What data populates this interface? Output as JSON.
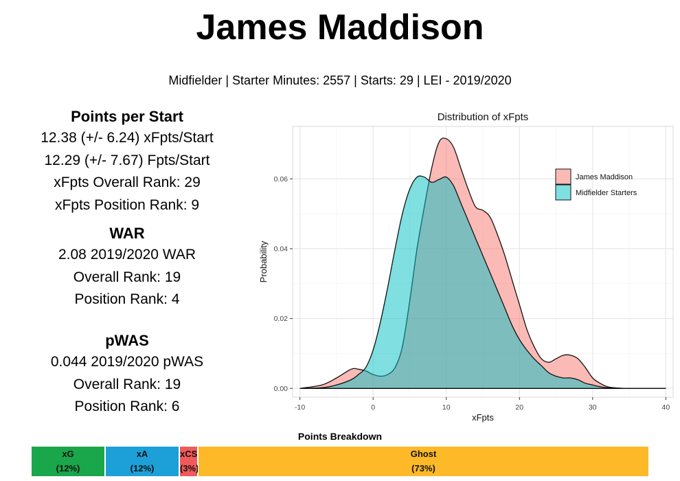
{
  "header": {
    "title": "James Maddison",
    "subtitle": "Midfielder | Starter Minutes: 2557 | Starts: 29 | LEI - 2019/2020"
  },
  "stats": {
    "points": {
      "heading": "Points per Start",
      "lines": [
        "12.38 (+/- 6.24) xFpts/Start",
        "12.29 (+/- 7.67) Fpts/Start",
        "xFpts Overall Rank: 29",
        "xFpts Position Rank: 9"
      ]
    },
    "war": {
      "heading": "WAR",
      "lines": [
        "2.08 2019/2020 WAR",
        "Overall Rank: 19",
        "Position Rank: 4"
      ]
    },
    "pwas": {
      "heading": "pWAS",
      "lines": [
        "0.044 2019/2020 pWAS",
        "Overall Rank: 19",
        "Position Rank: 6"
      ]
    }
  },
  "chart_data": {
    "type": "area",
    "title": "Distribution of xFpts",
    "xlabel": "xFpts",
    "ylabel": "Probability",
    "xlim": [
      -11,
      41
    ],
    "ylim": [
      -0.0025,
      0.075
    ],
    "xticks": [
      -10,
      0,
      10,
      20,
      30,
      40
    ],
    "yticks": [
      0.0,
      0.02,
      0.04,
      0.06
    ],
    "ytick_labels": [
      "0.00",
      "0.02",
      "0.04",
      "0.06"
    ],
    "grid": true,
    "legend_position": "top-right",
    "series": [
      {
        "name": "James Maddison",
        "color": "#f8766d",
        "x": [
          -10,
          -7,
          -5,
          -3,
          -2,
          -1,
          0,
          1,
          2,
          3,
          4,
          5,
          6,
          7,
          8,
          9,
          10,
          11,
          12,
          13,
          14,
          15,
          16,
          17,
          18,
          19,
          20,
          21,
          22,
          23,
          24,
          25,
          26,
          27,
          28,
          29,
          30,
          31,
          32,
          33,
          35,
          40
        ],
        "y": [
          0.0,
          0.001,
          0.003,
          0.0055,
          0.0055,
          0.005,
          0.004,
          0.0035,
          0.004,
          0.006,
          0.012,
          0.025,
          0.04,
          0.052,
          0.063,
          0.0705,
          0.0715,
          0.069,
          0.063,
          0.057,
          0.052,
          0.051,
          0.049,
          0.044,
          0.038,
          0.031,
          0.024,
          0.017,
          0.012,
          0.0085,
          0.0075,
          0.0085,
          0.0095,
          0.0095,
          0.0085,
          0.006,
          0.003,
          0.0015,
          0.0005,
          0.0002,
          0.0,
          0.0
        ]
      },
      {
        "name": "Midfielder Starters",
        "color": "#00bfc4",
        "x": [
          -10,
          -7,
          -5,
          -3,
          -2,
          -1,
          0,
          1,
          2,
          3,
          4,
          5,
          6,
          7,
          8,
          9,
          10,
          11,
          12,
          13,
          14,
          15,
          16,
          17,
          18,
          19,
          20,
          21,
          22,
          23,
          24,
          25,
          26,
          27,
          28,
          29,
          30,
          31,
          32,
          33,
          35,
          40
        ],
        "y": [
          0.0,
          0.0002,
          0.001,
          0.0025,
          0.004,
          0.006,
          0.011,
          0.019,
          0.029,
          0.04,
          0.05,
          0.057,
          0.0605,
          0.0605,
          0.059,
          0.0598,
          0.0605,
          0.058,
          0.053,
          0.048,
          0.043,
          0.038,
          0.033,
          0.028,
          0.023,
          0.018,
          0.014,
          0.011,
          0.0085,
          0.0065,
          0.0045,
          0.0035,
          0.003,
          0.003,
          0.0025,
          0.0015,
          0.001,
          0.0005,
          0.0002,
          0.0001,
          0.0,
          0.0
        ]
      }
    ]
  },
  "breakdown": {
    "title": "Points Breakdown",
    "segments": [
      {
        "label": "xG",
        "pct_label": "(12%)",
        "value": 12,
        "color": "#1aa64a"
      },
      {
        "label": "xA",
        "pct_label": "(12%)",
        "value": 12,
        "color": "#1d9fd8"
      },
      {
        "label": "xCS",
        "pct_label": "(3%)",
        "value": 3,
        "color": "#f15a5a"
      },
      {
        "label": "Ghost",
        "pct_label": "(73%)",
        "value": 73,
        "color": "#fdb927"
      }
    ]
  }
}
